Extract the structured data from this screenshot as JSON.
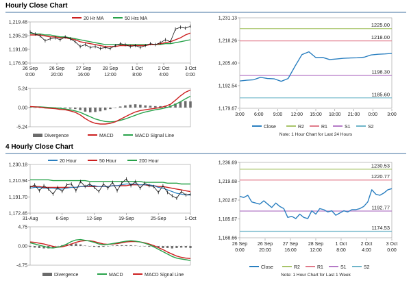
{
  "colors": {
    "close": "#2a7fc0",
    "ma20": "#cc1f1f",
    "ma50": "#27a24a",
    "ma200": "#27a24a",
    "r2": "#a8c46a",
    "r1": "#e07a8a",
    "s1": "#b57ac7",
    "s2": "#6fb5c9",
    "divergence": "#6b6b6b",
    "macd": "#cc1f1f",
    "signal": "#27a24a"
  },
  "sections": {
    "hourly_title": "Hourly Close Chart",
    "four_hourly_title": "4 Hourly Close Chart"
  },
  "chart_data": [
    {
      "id": "hourly-price",
      "type": "line",
      "legend": [
        "20 Hr MA",
        "50 Hrs MA"
      ],
      "ylim": [
        1176.9,
        1219.48
      ],
      "yticks": [
        "1,219.48",
        "1,205.29",
        "1,191.09",
        "1,176.90"
      ],
      "ytick_values": [
        1219.48,
        1205.29,
        1191.09,
        1176.9
      ],
      "xticks": [
        "26 Sep\n0:00",
        "26 Sep\n20:00",
        "27 Sep\n16:00",
        "28 Sep\n12:00",
        "1 Oct\n8:00",
        "2 Oct\n4:00",
        "3 Oct\n0:00"
      ],
      "series": [
        {
          "name": "Close",
          "values": [
            1209,
            1207,
            1205,
            1200,
            1202,
            1203,
            1201,
            1204,
            1202,
            1199,
            1194,
            1196,
            1193,
            1194,
            1192,
            1193,
            1192,
            1195,
            1197,
            1196,
            1194,
            1195,
            1193,
            1195,
            1197,
            1196,
            1198,
            1201,
            1199,
            1212,
            1214,
            1213,
            1215
          ]
        },
        {
          "name": "20 Hr MA",
          "values": [
            1206,
            1206,
            1206,
            1205,
            1204,
            1204,
            1203,
            1203,
            1202,
            1201,
            1199,
            1198,
            1197,
            1196,
            1195,
            1194,
            1194,
            1194,
            1195,
            1195,
            1195,
            1195,
            1195,
            1195,
            1196,
            1196,
            1197,
            1198,
            1199,
            1201,
            1203,
            1206,
            1208
          ]
        },
        {
          "name": "50 Hrs MA",
          "values": [
            1208,
            1207,
            1207,
            1206,
            1206,
            1205,
            1204,
            1204,
            1203,
            1202,
            1201,
            1200,
            1199,
            1198,
            1197,
            1196,
            1196,
            1196,
            1196,
            1196,
            1196,
            1196,
            1196,
            1196,
            1196,
            1196,
            1196,
            1197,
            1197,
            1198,
            1199,
            1200,
            1201
          ]
        }
      ]
    },
    {
      "id": "hourly-macd",
      "type": "line",
      "legend": [
        "Divergence",
        "MACD",
        "MACD Signal Line"
      ],
      "ylim": [
        -5.24,
        5.24
      ],
      "yticks": [
        "5.24",
        "0.00",
        "-5.24"
      ],
      "ytick_values": [
        5.24,
        0,
        -5.24
      ],
      "series": [
        {
          "name": "MACD",
          "values": [
            0.3,
            0.2,
            0.1,
            -0.1,
            -0.2,
            -0.3,
            -0.5,
            -0.6,
            -0.9,
            -1.3,
            -2.0,
            -3.0,
            -3.8,
            -4.3,
            -4.5,
            -4.5,
            -4.3,
            -3.9,
            -3.2,
            -2.5,
            -1.8,
            -1.2,
            -0.8,
            -0.6,
            -0.4,
            -0.2,
            0.0,
            0.4,
            0.9,
            2.0,
            3.2,
            4.2,
            4.8
          ]
        },
        {
          "name": "MACD Signal Line",
          "values": [
            0.2,
            0.2,
            0.2,
            0.1,
            0.0,
            -0.1,
            -0.2,
            -0.4,
            -0.6,
            -0.9,
            -1.3,
            -1.9,
            -2.5,
            -3.1,
            -3.5,
            -3.8,
            -3.9,
            -3.8,
            -3.5,
            -3.1,
            -2.6,
            -2.1,
            -1.6,
            -1.2,
            -0.9,
            -0.6,
            -0.4,
            -0.1,
            0.3,
            0.9,
            1.6,
            2.4,
            3.1
          ]
        },
        {
          "name": "Divergence",
          "values": [
            0.1,
            0.0,
            -0.1,
            -0.2,
            -0.2,
            -0.2,
            -0.3,
            -0.2,
            -0.3,
            -0.4,
            -0.7,
            -1.1,
            -1.3,
            -1.2,
            -1.0,
            -0.7,
            -0.4,
            -0.1,
            0.3,
            0.6,
            0.8,
            0.9,
            0.8,
            0.6,
            0.5,
            0.4,
            0.4,
            0.5,
            0.6,
            1.1,
            1.6,
            1.8,
            1.7
          ]
        }
      ]
    },
    {
      "id": "hourly-pivot",
      "type": "line",
      "legend": [
        "Close",
        "R2",
        "R1",
        "S1",
        "S2"
      ],
      "note": "Note: 1 Hour Chart for Last 24 Hours",
      "ylim": [
        1179.67,
        1231.13
      ],
      "yticks": [
        "1,231.13",
        "1,218.26",
        "1,205.40",
        "1,192.54",
        "1,179.67"
      ],
      "ytick_values": [
        1231.13,
        1218.26,
        1205.4,
        1192.54,
        1179.67
      ],
      "xticks": [
        "3:00",
        "6:00",
        "9:00",
        "12:00",
        "15:00",
        "18:00",
        "21:00",
        "0:00",
        "3:00"
      ],
      "levels": [
        {
          "name": "R2",
          "value": 1225.0,
          "label": "1225.00"
        },
        {
          "name": "R1",
          "value": 1218.0,
          "label": "1218.00"
        },
        {
          "name": "S1",
          "value": 1198.3,
          "label": "1198.30"
        },
        {
          "name": "S2",
          "value": 1185.6,
          "label": "1185.60"
        }
      ],
      "series": [
        {
          "name": "Close",
          "values": [
            1195.2,
            1195.6,
            1195.9,
            1197.3,
            1196.6,
            1196.4,
            1195.0,
            1196.6,
            1203.6,
            1210.2,
            1211.8,
            1208.5,
            1208.6,
            1207.4,
            1207.7,
            1208.1,
            1208.3,
            1208.4,
            1208.7,
            1210.0,
            1210.4,
            1210.6,
            1210.9
          ]
        }
      ]
    },
    {
      "id": "four-hourly-price",
      "type": "line",
      "legend": [
        "20 Hour",
        "50 Hour",
        "200 Hour"
      ],
      "ylim": [
        1172.46,
        1230.18
      ],
      "yticks": [
        "1,230.18",
        "1,210.94",
        "1,191.70",
        "1,172.46"
      ],
      "ytick_values": [
        1230.18,
        1210.94,
        1191.7,
        1172.46
      ],
      "xticks": [
        "31-Aug",
        "6-Sep",
        "12-Sep",
        "19-Sep",
        "25-Sep",
        "1-Oct"
      ],
      "series": [
        {
          "name": "Close",
          "values": [
            1203,
            1206,
            1199,
            1205,
            1201,
            1195,
            1203,
            1198,
            1206,
            1207,
            1199,
            1210,
            1204,
            1207,
            1203,
            1198,
            1207,
            1202,
            1209,
            1199,
            1208,
            1213,
            1205,
            1210,
            1202,
            1208,
            1205,
            1204,
            1197,
            1205,
            1197,
            1193,
            1190,
            1198,
            1194,
            1195
          ]
        },
        {
          "name": "20 Hour",
          "values": [
            1202,
            1203,
            1203,
            1202,
            1202,
            1202,
            1201,
            1201,
            1202,
            1203,
            1203,
            1204,
            1204,
            1205,
            1205,
            1204,
            1204,
            1204,
            1205,
            1205,
            1206,
            1207,
            1207,
            1207,
            1206,
            1206,
            1206,
            1205,
            1203,
            1202,
            1200,
            1198,
            1196,
            1195,
            1194,
            1194
          ]
        },
        {
          "name": "50 Hour",
          "values": [
            1204,
            1204,
            1204,
            1203,
            1203,
            1203,
            1203,
            1203,
            1203,
            1203,
            1203,
            1204,
            1204,
            1204,
            1204,
            1204,
            1204,
            1204,
            1205,
            1205,
            1205,
            1205,
            1206,
            1206,
            1206,
            1206,
            1205,
            1205,
            1204,
            1204,
            1203,
            1202,
            1201,
            1200,
            1199,
            1198
          ]
        },
        {
          "name": "200 Hour",
          "values": [
            1212,
            1212,
            1212,
            1212,
            1212,
            1211,
            1211,
            1211,
            1211,
            1211,
            1211,
            1211,
            1211,
            1210,
            1210,
            1210,
            1210,
            1210,
            1210,
            1210,
            1210,
            1210,
            1210,
            1210,
            1210,
            1209,
            1209,
            1209,
            1209,
            1209,
            1208,
            1208,
            1208,
            1207,
            1207,
            1207
          ]
        }
      ]
    },
    {
      "id": "four-hourly-macd",
      "type": "line",
      "legend": [
        "Divergence",
        "MACD",
        "MACD Signal Line"
      ],
      "ylim": [
        -4.75,
        4.75
      ],
      "yticks": [
        "4.75",
        "0.00",
        "-4.75"
      ],
      "ytick_values": [
        4.75,
        0,
        -4.75
      ],
      "series": [
        {
          "name": "MACD",
          "values": [
            0.8,
            0.5,
            0.2,
            -0.1,
            -0.4,
            -0.5,
            -0.3,
            0.0,
            0.5,
            1.1,
            1.5,
            1.6,
            1.4,
            1.2,
            0.9,
            0.5,
            0.3,
            0.4,
            0.6,
            0.8,
            1.0,
            1.2,
            1.3,
            1.2,
            1.0,
            0.7,
            0.3,
            -0.2,
            -0.8,
            -1.4,
            -2.0,
            -2.6,
            -3.0,
            -3.2,
            -3.4,
            -3.6
          ]
        },
        {
          "name": "MACD Signal Line",
          "values": [
            1.0,
            0.9,
            0.7,
            0.5,
            0.2,
            -0.1,
            -0.3,
            -0.2,
            0.1,
            0.5,
            0.9,
            1.2,
            1.3,
            1.3,
            1.1,
            0.8,
            0.5,
            0.4,
            0.5,
            0.6,
            0.8,
            1.0,
            1.1,
            1.1,
            1.0,
            0.8,
            0.5,
            0.1,
            -0.4,
            -0.9,
            -1.5,
            -2.0,
            -2.5,
            -2.8,
            -3.0,
            -3.1
          ]
        },
        {
          "name": "Divergence",
          "values": [
            -0.2,
            -0.4,
            -0.5,
            -0.6,
            -0.6,
            -0.4,
            0.0,
            0.2,
            0.4,
            0.6,
            0.6,
            0.4,
            0.1,
            -0.1,
            -0.2,
            -0.3,
            -0.2,
            0.0,
            0.1,
            0.2,
            0.2,
            0.2,
            0.2,
            0.1,
            0.0,
            -0.1,
            -0.2,
            -0.3,
            -0.4,
            -0.5,
            -0.5,
            -0.6,
            -0.5,
            -0.4,
            -0.4,
            -0.5
          ]
        }
      ]
    },
    {
      "id": "four-hourly-pivot",
      "type": "line",
      "legend": [
        "Close",
        "R2",
        "R1",
        "S1",
        "S2"
      ],
      "note": "Note: 1 Hour Chart for Last 1 Week",
      "ylim": [
        1168.66,
        1236.69
      ],
      "yticks": [
        "1,236.69",
        "1,219.68",
        "1,202.67",
        "1,185.67",
        "1,168.66"
      ],
      "ytick_values": [
        1236.69,
        1219.68,
        1202.67,
        1185.67,
        1168.66
      ],
      "xticks": [
        "26 Sep\n0:00",
        "26 Sep\n20:00",
        "27 Sep\n16:00",
        "28 Sep\n12:00",
        "1 Oct\n8:00",
        "2 Oct\n4:00",
        "3 Oct\n0:00"
      ],
      "levels": [
        {
          "name": "R2",
          "value": 1230.53,
          "label": "1230.53"
        },
        {
          "name": "R1",
          "value": 1220.77,
          "label": "1220.77"
        },
        {
          "name": "S1",
          "value": 1192.77,
          "label": "1192.77"
        },
        {
          "name": "S2",
          "value": 1174.53,
          "label": "1174.53"
        }
      ],
      "series": [
        {
          "name": "Close",
          "values": [
            1206,
            1205,
            1207,
            1201,
            1200,
            1199,
            1202,
            1199,
            1196,
            1200,
            1197,
            1195,
            1187,
            1188,
            1186,
            1190,
            1187,
            1186,
            1193,
            1190,
            1195,
            1194,
            1192,
            1193,
            1189,
            1191,
            1193,
            1192,
            1194,
            1194,
            1195,
            1197,
            1201,
            1212,
            1208,
            1207,
            1209,
            1212,
            1213
          ]
        }
      ]
    }
  ]
}
